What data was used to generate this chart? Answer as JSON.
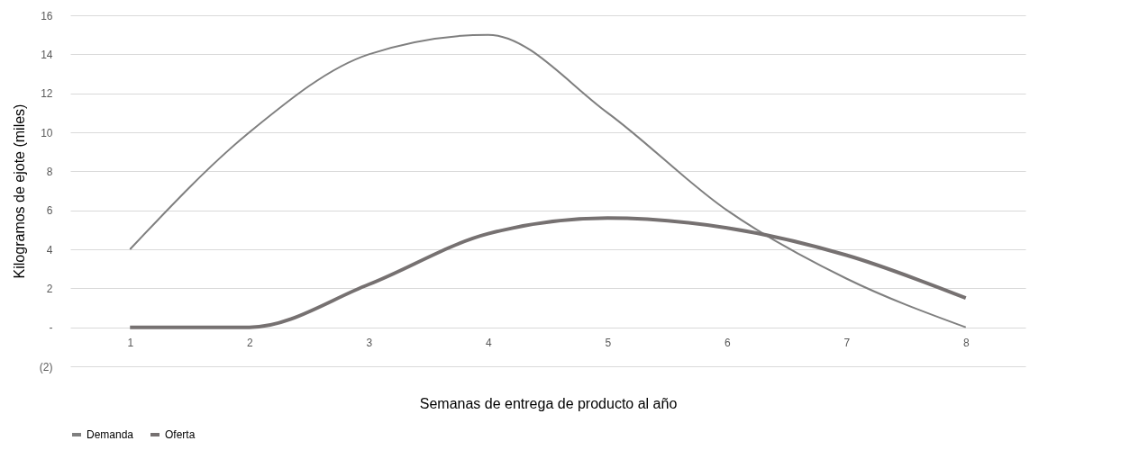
{
  "chart_data": {
    "type": "line",
    "xlabel": "Semanas de entrega de producto al año",
    "ylabel": "Kilogramos de ejote (miles)",
    "categories": [
      "1",
      "2",
      "3",
      "4",
      "5",
      "6",
      "7",
      "8"
    ],
    "series": [
      {
        "name": "Demanda",
        "color": "#7f7f7f",
        "values": [
          4,
          10,
          14,
          15,
          11,
          6,
          2.5,
          0
        ]
      },
      {
        "name": "Oferta",
        "color": "#767171",
        "values": [
          0,
          0,
          2.2,
          4.8,
          5.6,
          5.1,
          3.7,
          1.5
        ]
      }
    ],
    "ylim": [
      -2,
      16
    ],
    "yticks": [
      {
        "value": -2,
        "label": "(2)"
      },
      {
        "value": 0,
        "label": "-"
      },
      2,
      4,
      6,
      8,
      10,
      12,
      14,
      16
    ],
    "grid": "y",
    "legend": "bottom",
    "marker": "none",
    "line_style": "solid"
  }
}
